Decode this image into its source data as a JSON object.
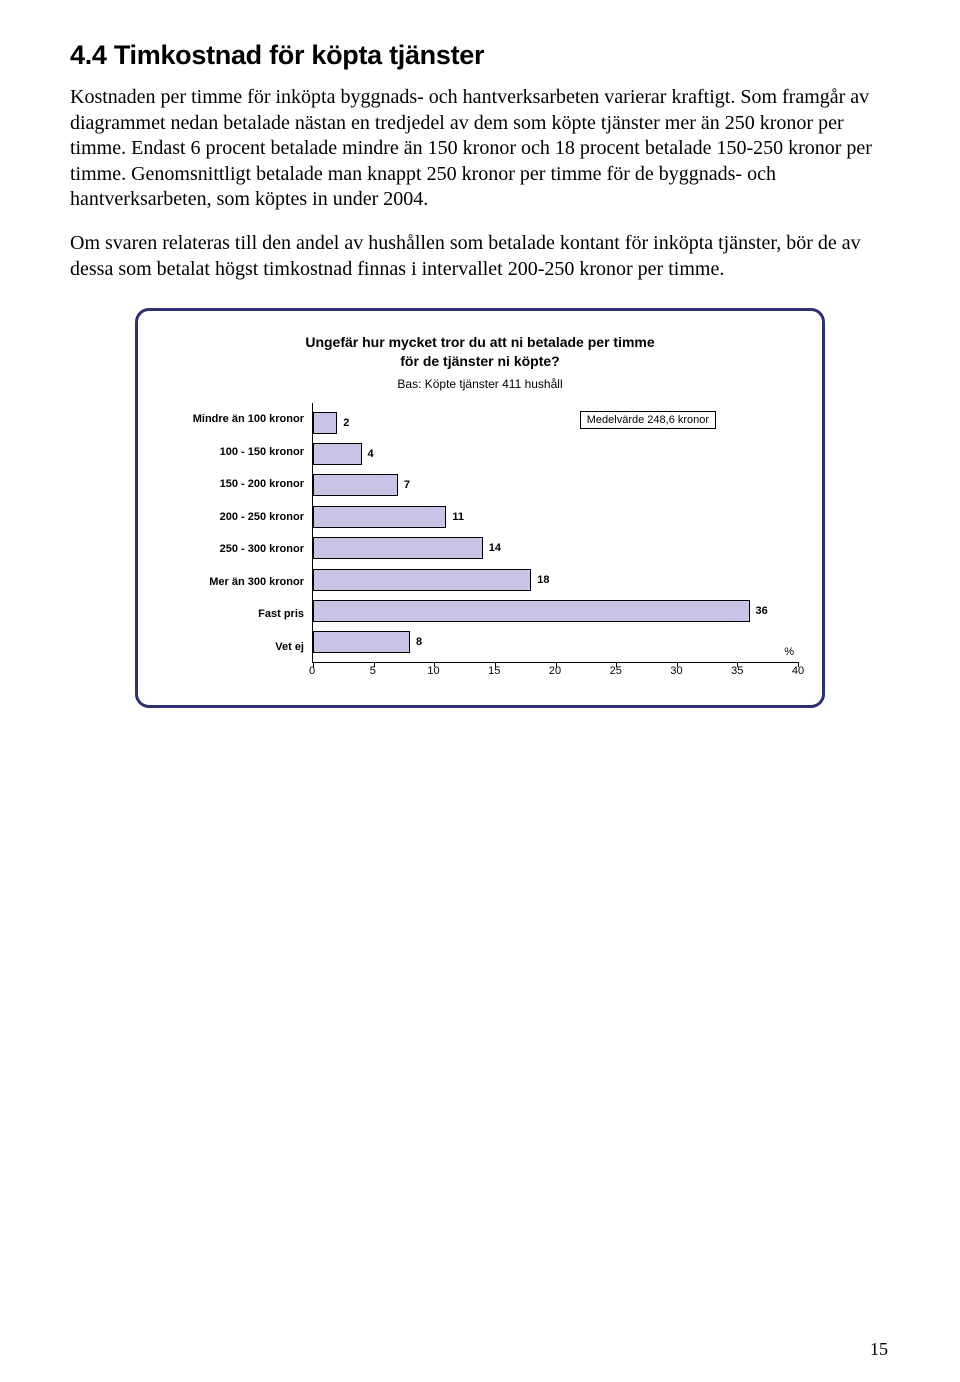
{
  "heading": "4.4 Timkostnad för köpta tjänster",
  "para1": "Kostnaden per timme för inköpta byggnads- och hantverksarbeten varierar kraftigt. Som framgår av diagrammet nedan betalade nästan en tredjedel av dem som köpte tjänster mer än 250 kronor per timme. Endast 6 procent betalade mindre än 150 kronor och 18 procent betalade 150-250 kronor per timme. Genomsnittligt betalade man knappt 250 kronor per timme för de byggnads- och hantverksarbeten, som köptes in under 2004.",
  "para2": "Om svaren relateras till den andel av hushållen som betalade kontant för inköpta tjänster, bör de av dessa som betalat högst timkostnad finnas i intervallet 200-250 kronor per timme.",
  "chart": {
    "type": "bar",
    "title_line1": "Ungefär hur mycket tror du att ni betalade per timme",
    "title_line2": "för de tjänster ni köpte?",
    "subtitle": "Bas: Köpte tjänster 411 hushåll",
    "annotation": "Medelvärde 248,6 kronor",
    "pct_label": "%",
    "xmax": 40,
    "xticks": [
      0,
      5,
      10,
      15,
      20,
      25,
      30,
      35,
      40
    ],
    "bar_color": "#c7c4e6",
    "bar_border": "#000000",
    "border_color": "#2e3070",
    "categories": [
      {
        "label": "Mindre än 100 kronor",
        "value": 2
      },
      {
        "label": "100 - 150 kronor",
        "value": 4
      },
      {
        "label": "150 - 200 kronor",
        "value": 7
      },
      {
        "label": "200 - 250 kronor",
        "value": 11
      },
      {
        "label": "250 - 300 kronor",
        "value": 14
      },
      {
        "label": "Mer än 300 kronor",
        "value": 18
      },
      {
        "label": "Fast pris",
        "value": 36
      },
      {
        "label": "Vet ej",
        "value": 8
      }
    ]
  },
  "page_number": "15"
}
